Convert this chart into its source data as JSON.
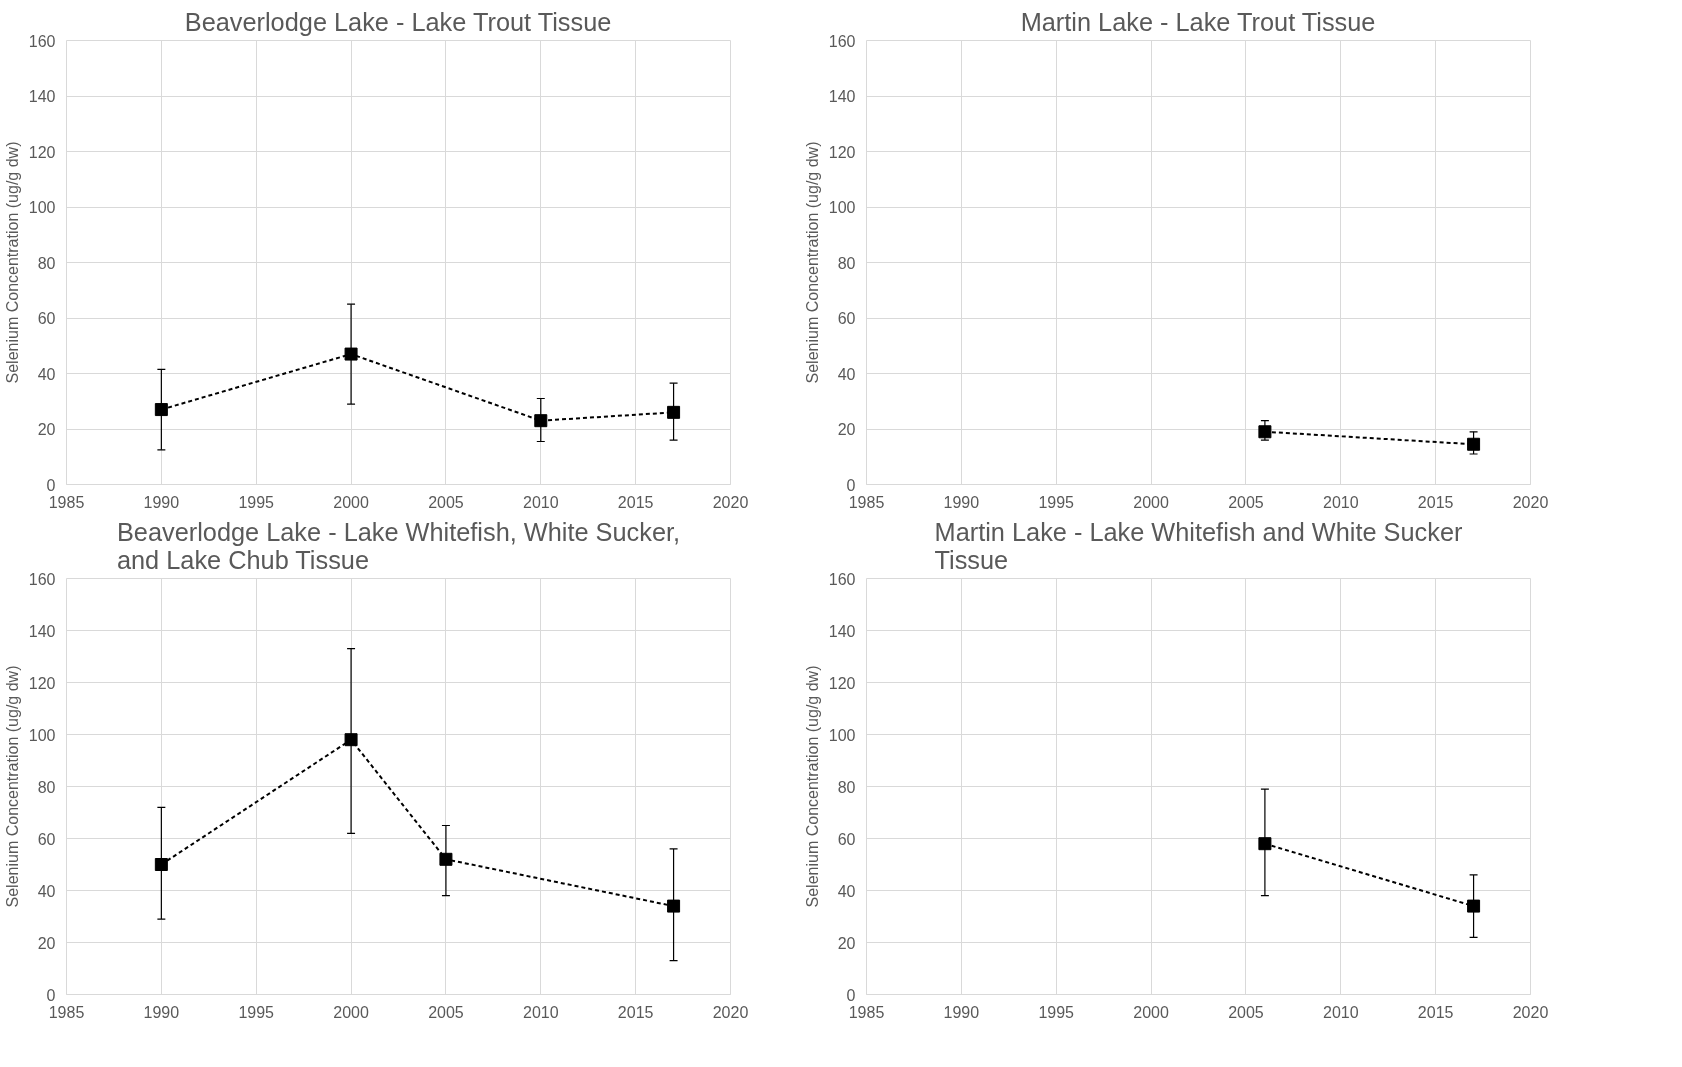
{
  "chart_data": [
    {
      "type": "line",
      "title": "Beaverlodge Lake - Lake Trout Tissue",
      "ylabel": "Selenium Concentration (ug/g dw)",
      "x": [
        1990,
        2000,
        2010,
        2017
      ],
      "series": [
        {
          "color": "#000000",
          "values": [
            27,
            47,
            23,
            26
          ],
          "errors": [
            [
              12.5,
              41.5
            ],
            [
              29,
              65
            ],
            [
              15.5,
              31
            ],
            [
              16,
              36.5
            ]
          ]
        }
      ],
      "xlim": [
        1985,
        2020
      ],
      "xticks": [
        1985,
        1990,
        1995,
        2000,
        2005,
        2010,
        2015,
        2020
      ],
      "ylim": [
        0,
        160
      ],
      "yticks": [
        0,
        20,
        40,
        60,
        80,
        100,
        120,
        140,
        160
      ],
      "grid": true,
      "marker": "square",
      "line_style": "dashed"
    },
    {
      "type": "line",
      "title": "Martin Lake - Lake Trout Tissue",
      "ylabel": "Selenium Concentration (ug/g dw)",
      "x": [
        2006,
        2017
      ],
      "series": [
        {
          "color": "#000000",
          "values": [
            19,
            14.5
          ],
          "errors": [
            [
              16,
              23
            ],
            [
              11,
              19
            ]
          ]
        }
      ],
      "xlim": [
        1985,
        2020
      ],
      "xticks": [
        1985,
        1990,
        1995,
        2000,
        2005,
        2010,
        2015,
        2020
      ],
      "ylim": [
        0,
        160
      ],
      "yticks": [
        0,
        20,
        40,
        60,
        80,
        100,
        120,
        140,
        160
      ],
      "grid": true,
      "marker": "square",
      "line_style": "dashed"
    },
    {
      "type": "line",
      "title": "Beaverlodge Lake - Lake Whitefish, White Sucker, and Lake Chub Tissue",
      "ylabel": "Selenium Concentration (ug/g dw)",
      "x": [
        1990,
        2000,
        2005,
        2017
      ],
      "series": [
        {
          "color": "#000000",
          "values": [
            50,
            98,
            52,
            34
          ],
          "errors": [
            [
              29,
              72
            ],
            [
              62,
              133
            ],
            [
              38,
              65
            ],
            [
              13,
              56
            ]
          ]
        }
      ],
      "xlim": [
        1985,
        2020
      ],
      "xticks": [
        1985,
        1990,
        1995,
        2000,
        2005,
        2010,
        2015,
        2020
      ],
      "ylim": [
        0,
        160
      ],
      "yticks": [
        0,
        20,
        40,
        60,
        80,
        100,
        120,
        140,
        160
      ],
      "grid": true,
      "marker": "square",
      "line_style": "dashed"
    },
    {
      "type": "line",
      "title": "Martin Lake - Lake Whitefish and White Sucker Tissue",
      "ylabel": "Selenium Concentration (ug/g dw)",
      "x": [
        2006,
        2017
      ],
      "series": [
        {
          "color": "#000000",
          "values": [
            58,
            34
          ],
          "errors": [
            [
              38,
              79
            ],
            [
              22,
              46
            ]
          ]
        }
      ],
      "xlim": [
        1985,
        2020
      ],
      "xticks": [
        1985,
        1990,
        1995,
        2000,
        2005,
        2010,
        2015,
        2020
      ],
      "ylim": [
        0,
        160
      ],
      "yticks": [
        0,
        20,
        40,
        60,
        80,
        100,
        120,
        140,
        160
      ],
      "grid": true,
      "marker": "square",
      "line_style": "dashed"
    }
  ]
}
